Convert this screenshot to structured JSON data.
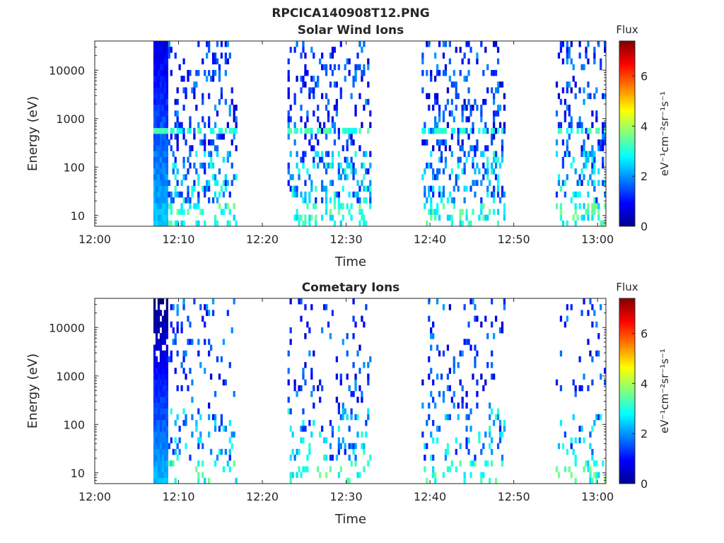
{
  "figure": {
    "title": "RPCICA140908T12.PNG"
  },
  "chart_data": [
    {
      "type": "heatmap",
      "title": "Solar Wind Ions",
      "xlabel": "Time",
      "ylabel": "Energy (eV)",
      "x_ticks": [
        "12:00",
        "12:10",
        "12:20",
        "12:30",
        "12:40",
        "12:50",
        "13:00"
      ],
      "y_ticks": [
        "10",
        "100",
        "1000",
        "10000"
      ],
      "y_scale": "log",
      "xlim": [
        "12:00",
        "13:01"
      ],
      "ylim": [
        6,
        40000
      ],
      "colorbar": {
        "title": "Flux",
        "label": "eV⁻¹cm⁻²sr⁻¹s⁻¹",
        "ticks": [
          "0",
          "2",
          "4",
          "6"
        ],
        "range": [
          0,
          7.4
        ],
        "colormap": "jet"
      },
      "observation_windows": [
        {
          "start": "12:07",
          "end": "12:17",
          "solar_wind_line_eV": 620
        },
        {
          "start": "12:23",
          "end": "12:33",
          "solar_wind_line_eV": 620
        },
        {
          "start": "12:39",
          "end": "12:49",
          "solar_wind_line_eV": 620
        },
        {
          "start": "12:55",
          "end": "13:01",
          "solar_wind_line_eV": 620
        }
      ]
    },
    {
      "type": "heatmap",
      "title": "Cometary Ions",
      "xlabel": "Time",
      "ylabel": "Energy (eV)",
      "x_ticks": [
        "12:00",
        "12:10",
        "12:20",
        "12:30",
        "12:40",
        "12:50",
        "13:00"
      ],
      "y_ticks": [
        "10",
        "100",
        "1000",
        "10000"
      ],
      "y_scale": "log",
      "xlim": [
        "12:00",
        "13:01"
      ],
      "ylim": [
        6,
        40000
      ],
      "colorbar": {
        "title": "Flux",
        "label": "eV⁻¹cm⁻²sr⁻¹s⁻¹",
        "ticks": [
          "0",
          "2",
          "4",
          "6"
        ],
        "range": [
          0,
          7.4
        ],
        "colormap": "jet"
      },
      "observation_windows": [
        {
          "start": "12:07",
          "end": "12:17"
        },
        {
          "start": "12:23",
          "end": "12:33"
        },
        {
          "start": "12:39",
          "end": "12:49"
        },
        {
          "start": "12:55",
          "end": "13:01"
        }
      ]
    }
  ]
}
